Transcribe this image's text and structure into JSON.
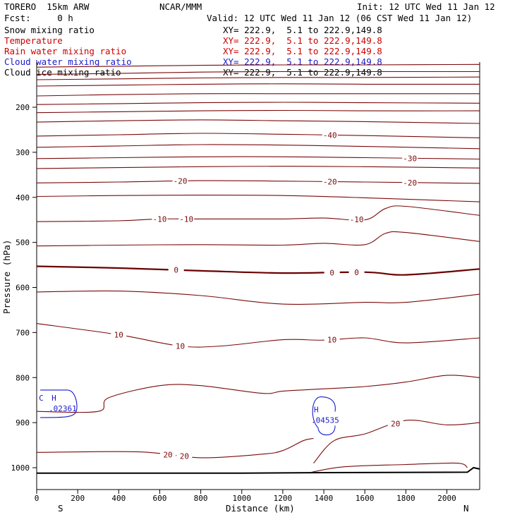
{
  "header": {
    "model": "TORERO  15km ARW",
    "org": "NCAR/MMM",
    "init": "Init: 12 UTC Wed 11 Jan 12",
    "fcst": "Fcst:     0 h",
    "valid": "Valid: 12 UTC Wed 11 Jan 12 (06 CST Wed 11 Jan 12)"
  },
  "fields": [
    {
      "name": "Snow mixing ratio",
      "xy": "",
      "color": "#000000"
    },
    {
      "name": "Temperature",
      "xy": "XY= 222.9,  5.1 to 222.9,149.8",
      "color": "#cc0000"
    },
    {
      "name": "Rain water mixing ratio",
      "xy": "XY= 222.9,  5.1 to 222.9,149.8",
      "color": "#cc0000"
    },
    {
      "name": "Cloud water mixing ratio",
      "xy": "XY= 222.9,  5.1 to 222.9,149.8",
      "color": "#1a1acc"
    },
    {
      "name": "Cloud ice mixing ratio",
      "xy": "XY= 222.9,  5.1 to 222.9,149.8",
      "color": "#000000"
    }
  ],
  "snow_xy": "XY= 222.9,  5.1 to 222.9,149.8",
  "colors": {
    "temperature": "#7a0a0a",
    "zero_line": "#6b0000",
    "cloud_water": "#1a1acc",
    "terrain": "#000000",
    "axis": "#000000"
  },
  "chart_data": {
    "type": "contour",
    "xlabel": "Distance (km)",
    "ylabel": "Pressure (hPa)",
    "xlim": [
      0,
      2160
    ],
    "ylim": [
      1050,
      100
    ],
    "x_ticks": [
      0,
      200,
      400,
      600,
      800,
      1000,
      1200,
      1400,
      1600,
      1800,
      2000
    ],
    "y_ticks": [
      200,
      300,
      400,
      500,
      600,
      700,
      800,
      900,
      1000
    ],
    "x_end_labels": {
      "left": "S",
      "right": "N"
    },
    "series": [
      {
        "name": "Temperature",
        "contours": [
          {
            "points": [
              [
                0,
                111
              ],
              [
                400,
                109
              ],
              [
                800,
                107
              ],
              [
                1200,
                106
              ],
              [
                1600,
                106
              ],
              [
                2160,
                105
              ]
            ]
          },
          {
            "points": [
              [
                0,
                127
              ],
              [
                400,
                125
              ],
              [
                800,
                122
              ],
              [
                1200,
                121
              ],
              [
                1600,
                121
              ],
              [
                2160,
                121
              ]
            ]
          },
          {
            "points": [
              [
                0,
                139
              ],
              [
                400,
                137
              ],
              [
                800,
                135
              ],
              [
                1200,
                134
              ],
              [
                1600,
                134
              ],
              [
                2160,
                133
              ]
            ]
          },
          {
            "points": [
              [
                0,
                153
              ],
              [
                400,
                151
              ],
              [
                800,
                149
              ],
              [
                1200,
                148
              ],
              [
                1600,
                149
              ],
              [
                2160,
                149
              ]
            ]
          },
          {
            "points": [
              [
                0,
                175
              ],
              [
                400,
                172
              ],
              [
                800,
                170
              ],
              [
                1200,
                170
              ],
              [
                1600,
                170
              ],
              [
                2160,
                170
              ]
            ]
          },
          {
            "points": [
              [
                0,
                194
              ],
              [
                400,
                192
              ],
              [
                800,
                190
              ],
              [
                1200,
                189
              ],
              [
                1600,
                190
              ],
              [
                2160,
                191
              ]
            ]
          },
          {
            "points": [
              [
                0,
                212
              ],
              [
                400,
                210
              ],
              [
                800,
                208
              ],
              [
                1200,
                207
              ],
              [
                1600,
                208
              ],
              [
                2160,
                208
              ]
            ]
          },
          {
            "points": [
              [
                0,
                233
              ],
              [
                400,
                230
              ],
              [
                800,
                228
              ],
              [
                1200,
                230
              ],
              [
                1600,
                232
              ],
              [
                2160,
                236
              ]
            ]
          },
          {
            "level": -40,
            "label": "-40",
            "label_at": 1430,
            "points": [
              [
                0,
                264
              ],
              [
                400,
                261
              ],
              [
                800,
                258
              ],
              [
                1200,
                260
              ],
              [
                1600,
                263
              ],
              [
                2160,
                268
              ]
            ]
          },
          {
            "points": [
              [
                0,
                289
              ],
              [
                400,
                286
              ],
              [
                800,
                283
              ],
              [
                1200,
                284
              ],
              [
                1600,
                287
              ],
              [
                2160,
                292
              ]
            ]
          },
          {
            "level": -30,
            "label": "-30",
            "label_at": 1820,
            "points": [
              [
                0,
                314
              ],
              [
                400,
                312
              ],
              [
                800,
                310
              ],
              [
                1200,
                310
              ],
              [
                1600,
                312
              ],
              [
                2160,
                315
              ]
            ]
          },
          {
            "points": [
              [
                0,
                336
              ],
              [
                400,
                334
              ],
              [
                800,
                332
              ],
              [
                1200,
                331
              ],
              [
                1600,
                332
              ],
              [
                2160,
                335
              ]
            ]
          },
          {
            "level": -20,
            "labels": [
              {
                "text": "-20",
                "at": 700
              },
              {
                "text": "-20",
                "at": 1430
              },
              {
                "text": "-20",
                "at": 1820
              }
            ],
            "points": [
              [
                0,
                368
              ],
              [
                400,
                366
              ],
              [
                800,
                363
              ],
              [
                1200,
                364
              ],
              [
                1600,
                366
              ],
              [
                2160,
                369
              ]
            ]
          },
          {
            "points": [
              [
                0,
                398
              ],
              [
                400,
                396
              ],
              [
                800,
                395
              ],
              [
                1200,
                396
              ],
              [
                1600,
                401
              ],
              [
                2160,
                410
              ]
            ]
          },
          {
            "level": -10,
            "labels": [
              {
                "text": "-10",
                "at": 600
              },
              {
                "text": "-10",
                "at": 730
              },
              {
                "text": "-10",
                "at": 1560
              }
            ],
            "points": [
              [
                0,
                454
              ],
              [
                400,
                452
              ],
              [
                600,
                448
              ],
              [
                800,
                448
              ],
              [
                1200,
                448
              ],
              [
                1400,
                446
              ],
              [
                1600,
                450
              ],
              [
                1700,
                425
              ],
              [
                1800,
                420
              ],
              [
                2160,
                440
              ]
            ]
          },
          {
            "points": [
              [
                0,
                508
              ],
              [
                400,
                506
              ],
              [
                800,
                505
              ],
              [
                1200,
                506
              ],
              [
                1400,
                502
              ],
              [
                1600,
                505
              ],
              [
                1700,
                480
              ],
              [
                1800,
                478
              ],
              [
                2160,
                498
              ]
            ]
          },
          {
            "level": 0,
            "label": "0",
            "labels": [
              {
                "text": "0",
                "at": 680
              },
              {
                "text": "0",
                "at": 1440
              },
              {
                "text": "0",
                "at": 1560
              }
            ],
            "points": [
              [
                0,
                553
              ],
              [
                400,
                557
              ],
              [
                800,
                563
              ],
              [
                1200,
                568
              ],
              [
                1600,
                566
              ],
              [
                1800,
                572
              ],
              [
                2160,
                559
              ]
            ]
          },
          {
            "points": [
              [
                0,
                610
              ],
              [
                400,
                608
              ],
              [
                800,
                618
              ],
              [
                1200,
                637
              ],
              [
                1600,
                633
              ],
              [
                1800,
                633
              ],
              [
                2160,
                615
              ]
            ]
          },
          {
            "level": 10,
            "labels": [
              {
                "text": "10",
                "at": 400
              },
              {
                "text": "10",
                "at": 700
              },
              {
                "text": "10",
                "at": 1440
              }
            ],
            "points": [
              [
                0,
                680
              ],
              [
                400,
                705
              ],
              [
                700,
                730
              ],
              [
                900,
                730
              ],
              [
                1200,
                716
              ],
              [
                1400,
                717
              ],
              [
                1600,
                712
              ],
              [
                1800,
                723
              ],
              [
                2160,
                712
              ]
            ]
          },
          {
            "points": [
              [
                0,
                875
              ],
              [
                300,
                875
              ],
              [
                350,
                845
              ],
              [
                600,
                818
              ],
              [
                800,
                818
              ],
              [
                1100,
                835
              ],
              [
                1200,
                830
              ],
              [
                1400,
                825
              ],
              [
                1600,
                820
              ],
              [
                1800,
                810
              ],
              [
                2000,
                795
              ],
              [
                2160,
                800
              ]
            ]
          },
          {
            "level": 20,
            "labels": [
              {
                "text": "20",
                "at": 1750
              }
            ],
            "points": [
              [
                1350,
                990
              ],
              [
                1450,
                940
              ],
              [
                1600,
                925
              ],
              [
                1800,
                895
              ],
              [
                2000,
                905
              ],
              [
                2160,
                900
              ]
            ]
          },
          {
            "level": 20,
            "labels": [
              {
                "text": "20",
                "at": 640
              },
              {
                "text": "20",
                "at": 720
              }
            ],
            "points": [
              [
                0,
                966
              ],
              [
                500,
                965
              ],
              [
                800,
                978
              ],
              [
                1100,
                970
              ],
              [
                1200,
                962
              ],
              [
                1300,
                940
              ],
              [
                1350,
                935
              ]
            ]
          },
          {
            "points": [
              [
                1340,
                1010
              ],
              [
                1500,
                998
              ],
              [
                1800,
                993
              ],
              [
                2050,
                990
              ],
              [
                2100,
                1000
              ]
            ]
          }
        ]
      },
      {
        "name": "Cloud water mixing ratio",
        "maxima": [
          {
            "label": "H",
            "value": ".02361",
            "x": 100,
            "p": 870
          },
          {
            "label": "H",
            "value": ".04535",
            "x": 1400,
            "p": 885
          }
        ]
      },
      {
        "name": "Terrain",
        "points": [
          [
            0,
            1012
          ],
          [
            1000,
            1012
          ],
          [
            1400,
            1011
          ],
          [
            2100,
            1010
          ],
          [
            2130,
            1000
          ],
          [
            2160,
            1003
          ]
        ]
      }
    ],
    "annotations": [
      "C"
    ]
  }
}
